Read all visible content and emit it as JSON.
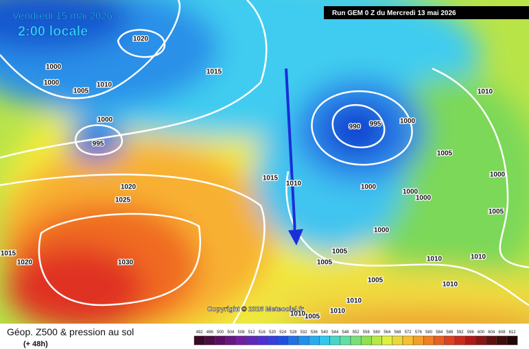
{
  "header": {
    "title": "Vendredi 15 mai 2026",
    "time": "2:00 locale",
    "run": "Run GEM 0 Z du Mercredi 13 mai 2026"
  },
  "map": {
    "isobar_labels": [
      1020,
      1000,
      1010,
      1000,
      1005,
      1015,
      1000,
      995,
      990,
      995,
      1000,
      1010,
      1005,
      1000,
      1015,
      1010,
      1000,
      1000,
      1000,
      1020,
      1025,
      1000,
      1005,
      1005,
      1005,
      1010,
      1010,
      1015,
      1020,
      1030,
      1005,
      1010,
      1010,
      1010,
      1005,
      1010
    ],
    "copyright": "Copyright © 2026 Meteociel.fr"
  },
  "footer": {
    "title": "Géop. Z500 & pression au sol",
    "lead": "(+ 48h)",
    "scale": [
      492,
      496,
      500,
      504,
      508,
      512,
      516,
      520,
      524,
      528,
      532,
      536,
      540,
      544,
      548,
      552,
      556,
      560,
      564,
      568,
      572,
      576,
      580,
      584,
      588,
      592,
      596,
      600,
      604,
      608,
      612
    ]
  }
}
